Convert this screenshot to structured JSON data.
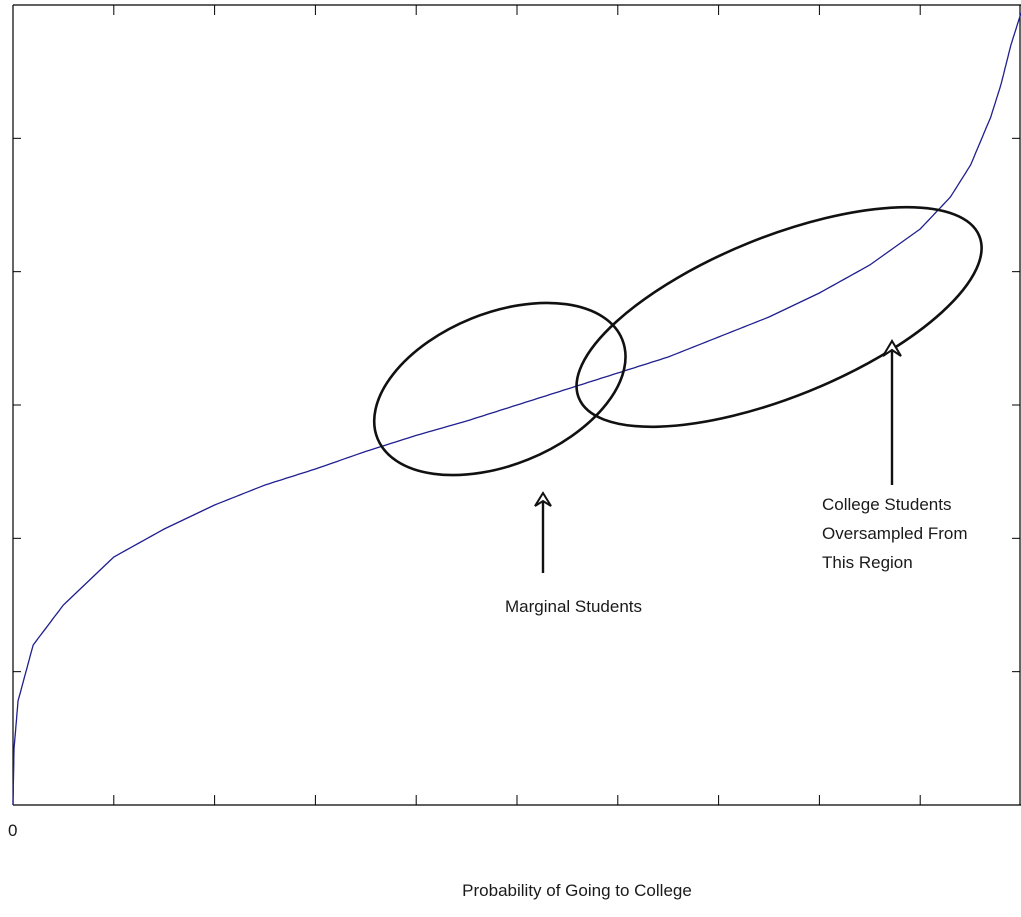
{
  "chart_data": {
    "type": "line",
    "xlabel": "Probability of Going to College",
    "ylabel": "",
    "title": "",
    "xlim": [
      0,
      1
    ],
    "ylim": [
      0,
      1
    ],
    "x_tick_label_first": "0",
    "grid": false,
    "series": [
      {
        "color": "#1f1f8f",
        "x": [
          0,
          0.001,
          0.005,
          0.02,
          0.05,
          0.1,
          0.15,
          0.2,
          0.25,
          0.3,
          0.35,
          0.4,
          0.45,
          0.5,
          0.55,
          0.6,
          0.65,
          0.7,
          0.75,
          0.8,
          0.85,
          0.9,
          0.93,
          0.95,
          0.97,
          0.98,
          0.99,
          1.0
        ],
        "y": [
          0,
          0.07,
          0.13,
          0.2,
          0.25,
          0.31,
          0.345,
          0.375,
          0.4,
          0.42,
          0.442,
          0.462,
          0.48,
          0.5,
          0.52,
          0.54,
          0.56,
          0.585,
          0.61,
          0.64,
          0.675,
          0.72,
          0.76,
          0.8,
          0.86,
          0.9,
          0.95,
          0.99
        ]
      }
    ],
    "annotations": [
      {
        "text": "Marginal Students",
        "shape": "ellipse",
        "center": [
          0.483,
          0.52
        ],
        "arrow_from_y": 0.29,
        "arrow_to_y": 0.39
      },
      {
        "text_lines": [
          "College Students",
          "Oversampled From",
          "This Region"
        ],
        "shape": "ellipse",
        "center": [
          0.76,
          0.61
        ],
        "arrow_from_y": 0.4,
        "arrow_to_y": 0.58
      }
    ]
  }
}
